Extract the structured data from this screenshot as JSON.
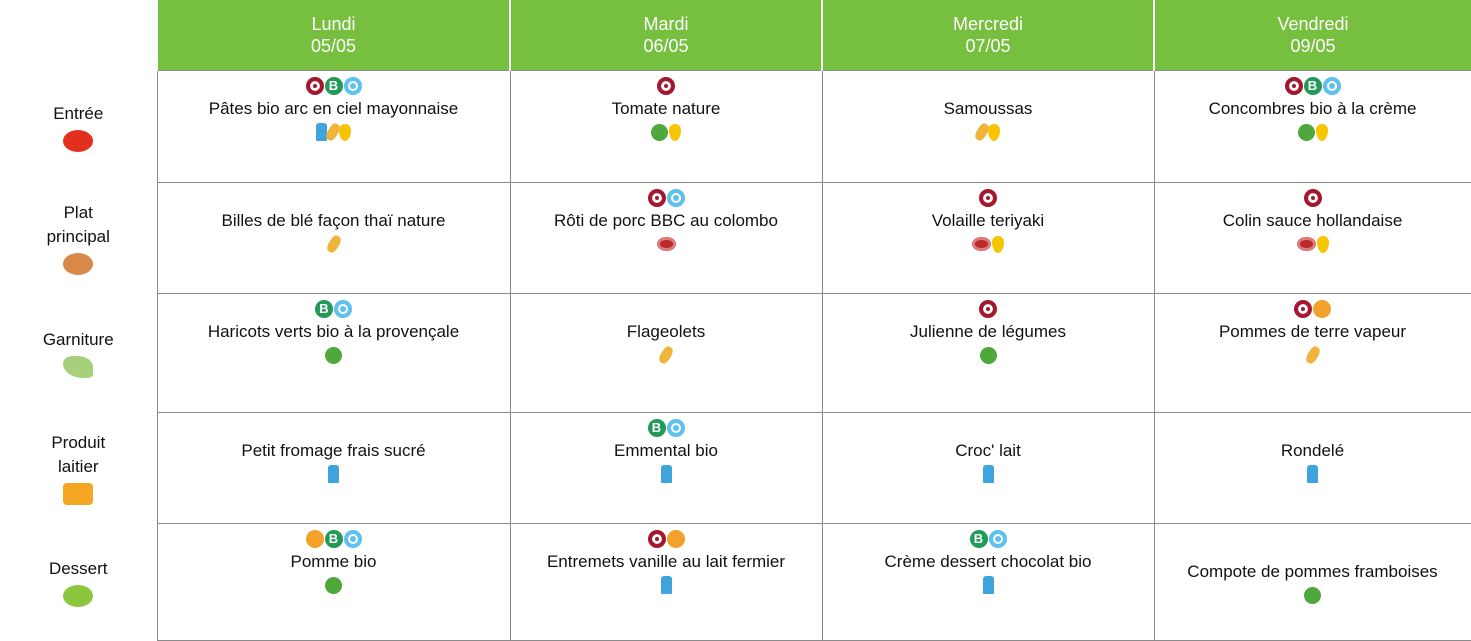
{
  "header": {
    "columns": [
      {
        "day": "Lundi",
        "date": "05/05"
      },
      {
        "day": "Mardi",
        "date": "06/05"
      },
      {
        "day": "Mercredi",
        "date": "07/05"
      },
      {
        "day": "Vendredi",
        "date": "09/05"
      }
    ]
  },
  "rows": [
    {
      "label": "Entrée",
      "cells": [
        "Pâtes bio arc en ciel mayonnaise",
        "Tomate nature",
        "Samoussas",
        "Concombres bio à la crème"
      ]
    },
    {
      "label": "Plat principal",
      "cells": [
        "Billes de blé façon thaï nature",
        "Rôti de porc BBC au colombo",
        "Volaille teriyaki",
        "Colin sauce hollandaise"
      ]
    },
    {
      "label": "Garniture",
      "cells": [
        "Haricots verts bio à la provençale",
        "Flageolets",
        "Julienne de légumes",
        "Pommes de terre vapeur"
      ]
    },
    {
      "label": "Produit laitier",
      "cells": [
        "Petit fromage frais sucré",
        "Emmental bio",
        "Croc' lait",
        "Rondelé"
      ]
    },
    {
      "label": "Dessert",
      "cells": [
        "Pomme bio",
        "Entremets vanille au lait fermier",
        "Crème dessert chocolat bio",
        "Compote de pommes framboises"
      ]
    }
  ]
}
